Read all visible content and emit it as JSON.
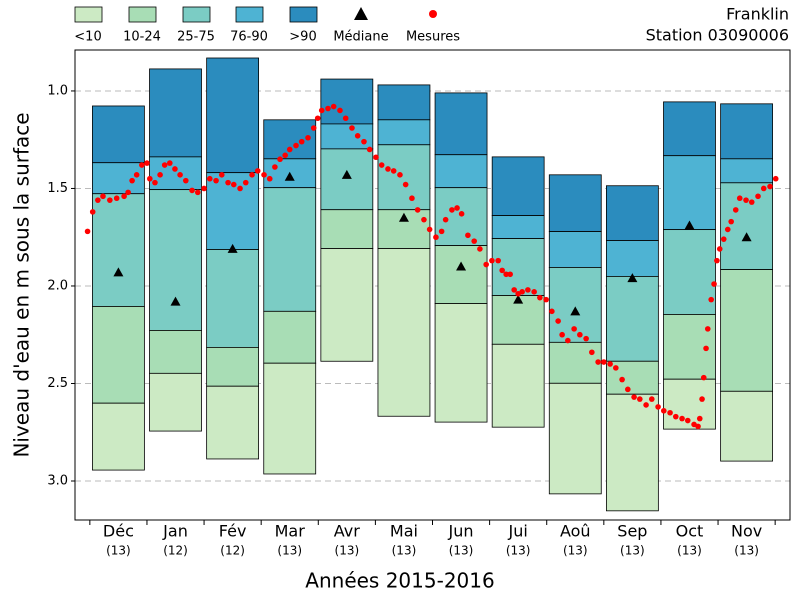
{
  "chart_data": {
    "type": "percentile-boxes",
    "title": "Franklin",
    "subtitle": "Station 03090006",
    "y_label": "Niveau d'eau en m sous la surface",
    "x_label": "Années 2015-2016",
    "categories": [
      "Déc",
      "Jan",
      "Fév",
      "Mar",
      "Avr",
      "Mai",
      "Jun",
      "Jui",
      "Aoû",
      "Sep",
      "Oct",
      "Nov"
    ],
    "counts": [
      "(13)",
      "(12)",
      "(12)",
      "(13)",
      "(13)",
      "(13)",
      "(13)",
      "(13)",
      "(13)",
      "(13)",
      "(13)",
      "(13)"
    ],
    "xlim": [
      -0.26,
      12.26
    ],
    "ylim": [
      0.79,
      3.2
    ],
    "inverted": true,
    "yticks": [
      {
        "value": 1.0,
        "label": "1.0"
      },
      {
        "value": 1.5,
        "label": "1.5"
      },
      {
        "value": 2.0,
        "label": "2.0"
      },
      {
        "value": 2.5,
        "label": "2.5"
      },
      {
        "value": 3.0,
        "label": "3.0"
      }
    ],
    "grid": true,
    "classes": [
      {
        "name": ">90",
        "color": "#2b8cbe"
      },
      {
        "name": "76-90",
        "color": "#4eb3d3"
      },
      {
        "name": "25-75",
        "color": "#7bccc4"
      },
      {
        "name": "10-24",
        "color": "#a8ddb5"
      },
      {
        "name": "<10",
        "color": "#cceac4"
      }
    ],
    "legend_order": [
      4,
      3,
      2,
      1,
      0
    ],
    "boundaries": [
      [
        1.077,
        1.368,
        1.527,
        2.105,
        2.601,
        2.944
      ],
      [
        0.887,
        1.338,
        1.506,
        2.228,
        2.448,
        2.744
      ],
      [
        0.831,
        1.419,
        1.813,
        2.315,
        2.514,
        2.887
      ],
      [
        1.148,
        1.348,
        1.496,
        2.13,
        2.396,
        2.964
      ],
      [
        0.939,
        1.169,
        1.297,
        1.609,
        1.808,
        2.386
      ],
      [
        0.969,
        1.148,
        1.276,
        1.609,
        1.808,
        2.668
      ],
      [
        1.01,
        1.327,
        1.496,
        1.793,
        2.09,
        2.698
      ],
      [
        1.338,
        1.639,
        1.757,
        2.049,
        2.299,
        2.724
      ],
      [
        1.43,
        1.721,
        1.905,
        2.289,
        2.499,
        3.066
      ],
      [
        1.486,
        1.767,
        1.951,
        2.386,
        2.555,
        3.153
      ],
      [
        1.056,
        1.332,
        1.711,
        2.146,
        2.478,
        2.734
      ],
      [
        1.066,
        1.348,
        1.471,
        1.916,
        2.54,
        2.898
      ]
    ],
    "median": {
      "name": "Médiane",
      "color": "#000000",
      "values": [
        1.93,
        2.08,
        1.81,
        1.44,
        1.43,
        1.65,
        1.9,
        2.07,
        2.13,
        1.96,
        1.69,
        1.75
      ]
    },
    "measures": {
      "name": "Mesures",
      "color": "#ff0000",
      "x": [
        -0.04,
        0.05,
        0.14,
        0.23,
        0.35,
        0.47,
        0.6,
        0.67,
        0.74,
        0.82,
        0.91,
        1.0,
        1.05,
        1.14,
        1.23,
        1.31,
        1.4,
        1.49,
        1.58,
        1.68,
        1.79,
        1.89,
        2.0,
        2.1,
        2.21,
        2.31,
        2.42,
        2.52,
        2.63,
        2.73,
        2.84,
        2.94,
        3.05,
        3.15,
        3.24,
        3.33,
        3.42,
        3.5,
        3.61,
        3.71,
        3.82,
        3.92,
        3.99,
        4.06,
        4.17,
        4.27,
        4.38,
        4.48,
        4.59,
        4.69,
        4.8,
        4.9,
        5.01,
        5.11,
        5.22,
        5.32,
        5.43,
        5.53,
        5.64,
        5.74,
        5.85,
        5.95,
        6.06,
        6.16,
        6.23,
        6.34,
        6.43,
        6.51,
        6.62,
        6.73,
        6.83,
        6.94,
        7.04,
        7.15,
        7.22,
        7.29,
        7.36,
        7.43,
        7.5,
        7.57,
        7.67,
        7.78,
        7.88,
        7.99,
        8.09,
        8.2,
        8.27,
        8.37,
        8.48,
        8.58,
        8.69,
        8.79,
        8.9,
        9.0,
        9.11,
        9.21,
        9.32,
        9.42,
        9.53,
        9.63,
        9.74,
        9.84,
        9.95,
        10.05,
        10.16,
        10.26,
        10.37,
        10.47,
        10.58,
        10.65,
        10.68,
        10.72,
        10.75,
        10.79,
        10.82,
        10.88,
        10.93,
        10.98,
        11.03,
        11.1,
        11.17,
        11.23,
        11.31,
        11.38,
        11.49,
        11.59,
        11.7,
        11.8,
        11.91,
        12.01
      ],
      "values": [
        1.72,
        1.62,
        1.56,
        1.54,
        1.56,
        1.55,
        1.54,
        1.52,
        1.46,
        1.43,
        1.38,
        1.37,
        1.45,
        1.47,
        1.43,
        1.38,
        1.37,
        1.4,
        1.43,
        1.46,
        1.51,
        1.52,
        1.5,
        1.45,
        1.46,
        1.43,
        1.47,
        1.48,
        1.5,
        1.47,
        1.43,
        1.41,
        1.43,
        1.45,
        1.39,
        1.35,
        1.33,
        1.3,
        1.28,
        1.26,
        1.24,
        1.19,
        1.14,
        1.1,
        1.09,
        1.08,
        1.1,
        1.14,
        1.19,
        1.23,
        1.26,
        1.3,
        1.34,
        1.38,
        1.4,
        1.41,
        1.43,
        1.48,
        1.55,
        1.61,
        1.66,
        1.71,
        1.75,
        1.72,
        1.66,
        1.61,
        1.6,
        1.63,
        1.74,
        1.77,
        1.81,
        1.89,
        1.87,
        1.87,
        1.92,
        1.94,
        1.94,
        2.02,
        2.04,
        2.03,
        2.02,
        2.03,
        2.06,
        2.07,
        2.13,
        2.18,
        2.25,
        2.28,
        2.22,
        2.25,
        2.27,
        2.34,
        2.39,
        2.39,
        2.4,
        2.42,
        2.48,
        2.53,
        2.57,
        2.58,
        2.61,
        2.58,
        2.62,
        2.64,
        2.65,
        2.67,
        2.68,
        2.69,
        2.71,
        2.72,
        2.68,
        2.58,
        2.47,
        2.32,
        2.22,
        2.07,
        1.99,
        1.87,
        1.81,
        1.76,
        1.71,
        1.67,
        1.61,
        1.55,
        1.56,
        1.57,
        1.54,
        1.5,
        1.49,
        1.45
      ]
    }
  }
}
